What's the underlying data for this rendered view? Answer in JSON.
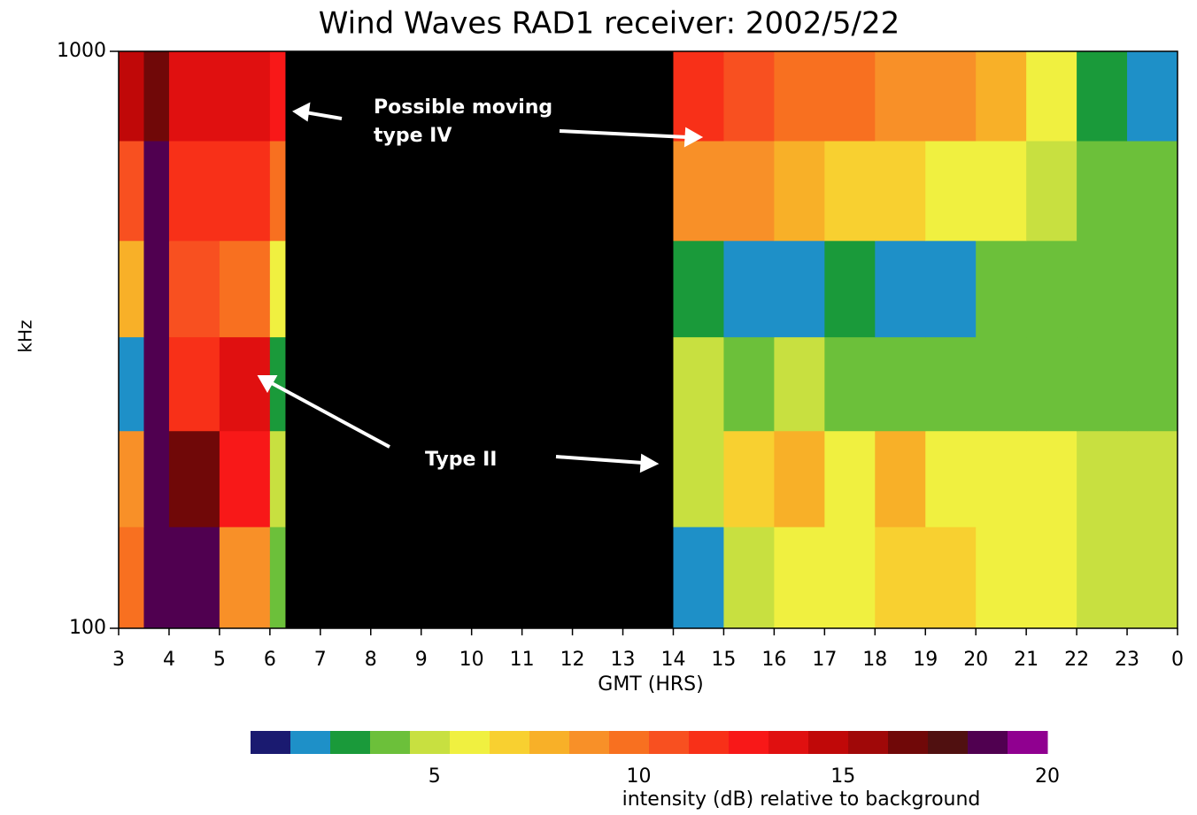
{
  "chart_data": {
    "type": "spectrogram",
    "title": "Wind Waves RAD1 receiver: 2002/5/22",
    "x_label": "GMT (HRS)",
    "y_label": "kHz",
    "xlim": [
      3,
      24
    ],
    "xticks": [
      3,
      4,
      5,
      6,
      7,
      8,
      9,
      10,
      11,
      12,
      13,
      14,
      15,
      16,
      17,
      18,
      19,
      20,
      21,
      22,
      23,
      {
        "value": 24,
        "label": "0"
      }
    ],
    "ylim": [
      100,
      1000
    ],
    "yticks": [
      100,
      1000
    ],
    "y_scale": "log",
    "xbins": [
      3,
      3.5,
      4,
      5,
      6,
      6.3,
      14,
      15,
      16,
      17,
      18,
      19,
      20,
      21,
      22,
      23,
      24
    ],
    "ybins": [
      100,
      150,
      220,
      320,
      470,
      700,
      1000
    ],
    "z": [
      [
        10,
        19,
        19,
        9,
        4,
        null,
        2,
        5,
        6,
        6,
        7,
        7,
        6,
        6,
        5,
        5
      ],
      [
        9,
        19,
        17,
        13,
        5,
        null,
        5,
        7,
        8,
        6,
        8,
        6,
        6,
        6,
        5,
        5
      ],
      [
        2,
        19,
        12,
        14,
        3,
        null,
        5,
        4,
        5,
        4,
        4,
        4,
        4,
        4,
        4,
        4
      ],
      [
        8,
        19,
        11,
        10,
        6,
        null,
        3,
        1.5,
        2,
        3,
        2,
        2,
        4,
        4,
        4,
        4
      ],
      [
        11,
        19,
        12,
        12,
        10,
        null,
        9,
        9,
        8,
        7,
        7,
        6,
        6,
        5,
        4,
        4
      ],
      [
        15,
        17,
        14,
        14,
        13,
        null,
        12,
        11,
        10,
        10,
        9,
        9,
        8,
        6,
        3,
        2
      ]
    ],
    "colorbar": {
      "label": "intensity (dB) relative to background",
      "clim": [
        0.5,
        20
      ],
      "ticks": [
        5,
        10,
        15,
        20
      ],
      "colors": [
        "#1a1a70",
        "#1e90c8",
        "#1a9a3a",
        "#6cc03a",
        "#c8e040",
        "#f0f040",
        "#f8d030",
        "#f8b028",
        "#f89028",
        "#f87020",
        "#f85020",
        "#f83018",
        "#f81818",
        "#e01010",
        "#c00808",
        "#a00808",
        "#700808",
        "#501010",
        "#500050",
        "#900090"
      ]
    },
    "annotations": [
      {
        "lines": [
          "Possible moving",
          "type IV"
        ]
      },
      {
        "lines": [
          "Type II"
        ]
      }
    ]
  }
}
